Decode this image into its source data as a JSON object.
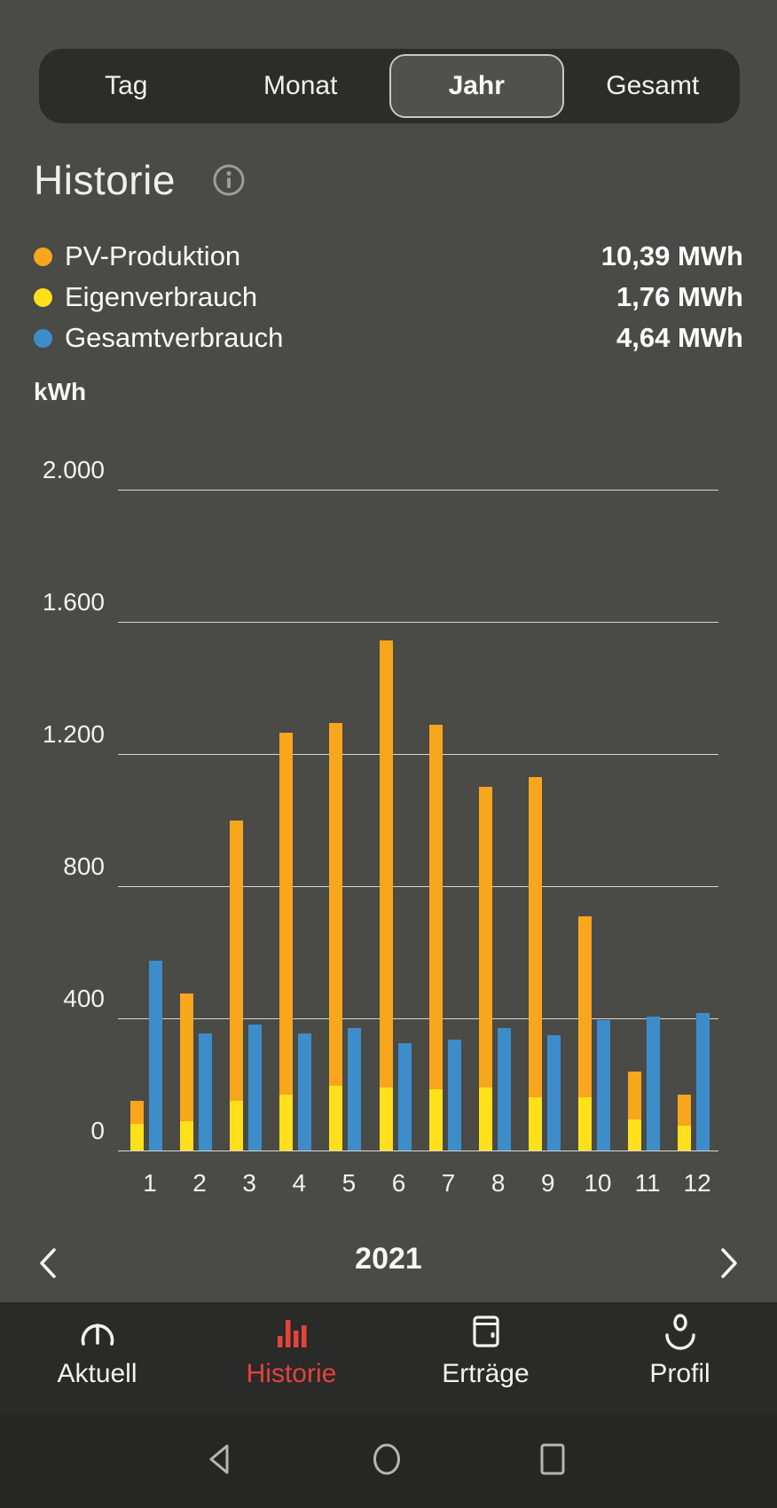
{
  "period_tabs": {
    "items": [
      "Tag",
      "Monat",
      "Jahr",
      "Gesamt"
    ],
    "selected": "Jahr"
  },
  "header": {
    "title": "Historie"
  },
  "legend": {
    "items": [
      {
        "label": "PV-Produktion",
        "value": "10,39 MWh",
        "color": "#F8A61B"
      },
      {
        "label": "Eigenverbrauch",
        "value": "1,76 MWh",
        "color": "#FFE01A"
      },
      {
        "label": "Gesamtverbrauch",
        "value": "4,64 MWh",
        "color": "#3E8DCB"
      }
    ]
  },
  "chart_data": {
    "type": "bar",
    "unit": "kWh",
    "categories": [
      "1",
      "2",
      "3",
      "4",
      "5",
      "6",
      "7",
      "8",
      "9",
      "10",
      "11",
      "12"
    ],
    "series": [
      {
        "name": "PV-Produktion",
        "color": "#F8A61B",
        "values": [
          150,
          475,
          1000,
          1265,
          1295,
          1545,
          1290,
          1100,
          1130,
          710,
          240,
          170
        ]
      },
      {
        "name": "Eigenverbrauch",
        "color": "#FFE01A",
        "values": [
          80,
          90,
          150,
          170,
          195,
          190,
          185,
          190,
          160,
          160,
          95,
          75
        ]
      },
      {
        "name": "Gesamtverbrauch",
        "color": "#3E8DCB",
        "values": [
          575,
          355,
          380,
          355,
          370,
          325,
          335,
          370,
          350,
          395,
          405,
          415
        ]
      }
    ],
    "ylim": [
      0,
      2000
    ],
    "yticks": [
      {
        "value": 2000,
        "label": "2.000"
      },
      {
        "value": 1600,
        "label": "1.600"
      },
      {
        "value": 1200,
        "label": "1.200"
      },
      {
        "value": 800,
        "label": "800"
      },
      {
        "value": 400,
        "label": "400"
      },
      {
        "value": 0,
        "label": "0"
      }
    ],
    "grid": true,
    "legend_position": "top",
    "bar_layout": "grouped; Eigenverbrauch bar overlays the base of the PV-Produktion bar"
  },
  "year_nav": {
    "year": "2021"
  },
  "bottom_nav": {
    "active_color": "#E2433D",
    "items": [
      {
        "label": "Aktuell",
        "icon": "gauge-icon",
        "active": false
      },
      {
        "label": "Historie",
        "icon": "bar-chart-icon",
        "active": true
      },
      {
        "label": "Erträge",
        "icon": "wallet-icon",
        "active": false
      },
      {
        "label": "Profil",
        "icon": "person-icon",
        "active": false
      }
    ]
  },
  "android_nav": {
    "buttons": [
      "back",
      "home",
      "recents"
    ]
  }
}
